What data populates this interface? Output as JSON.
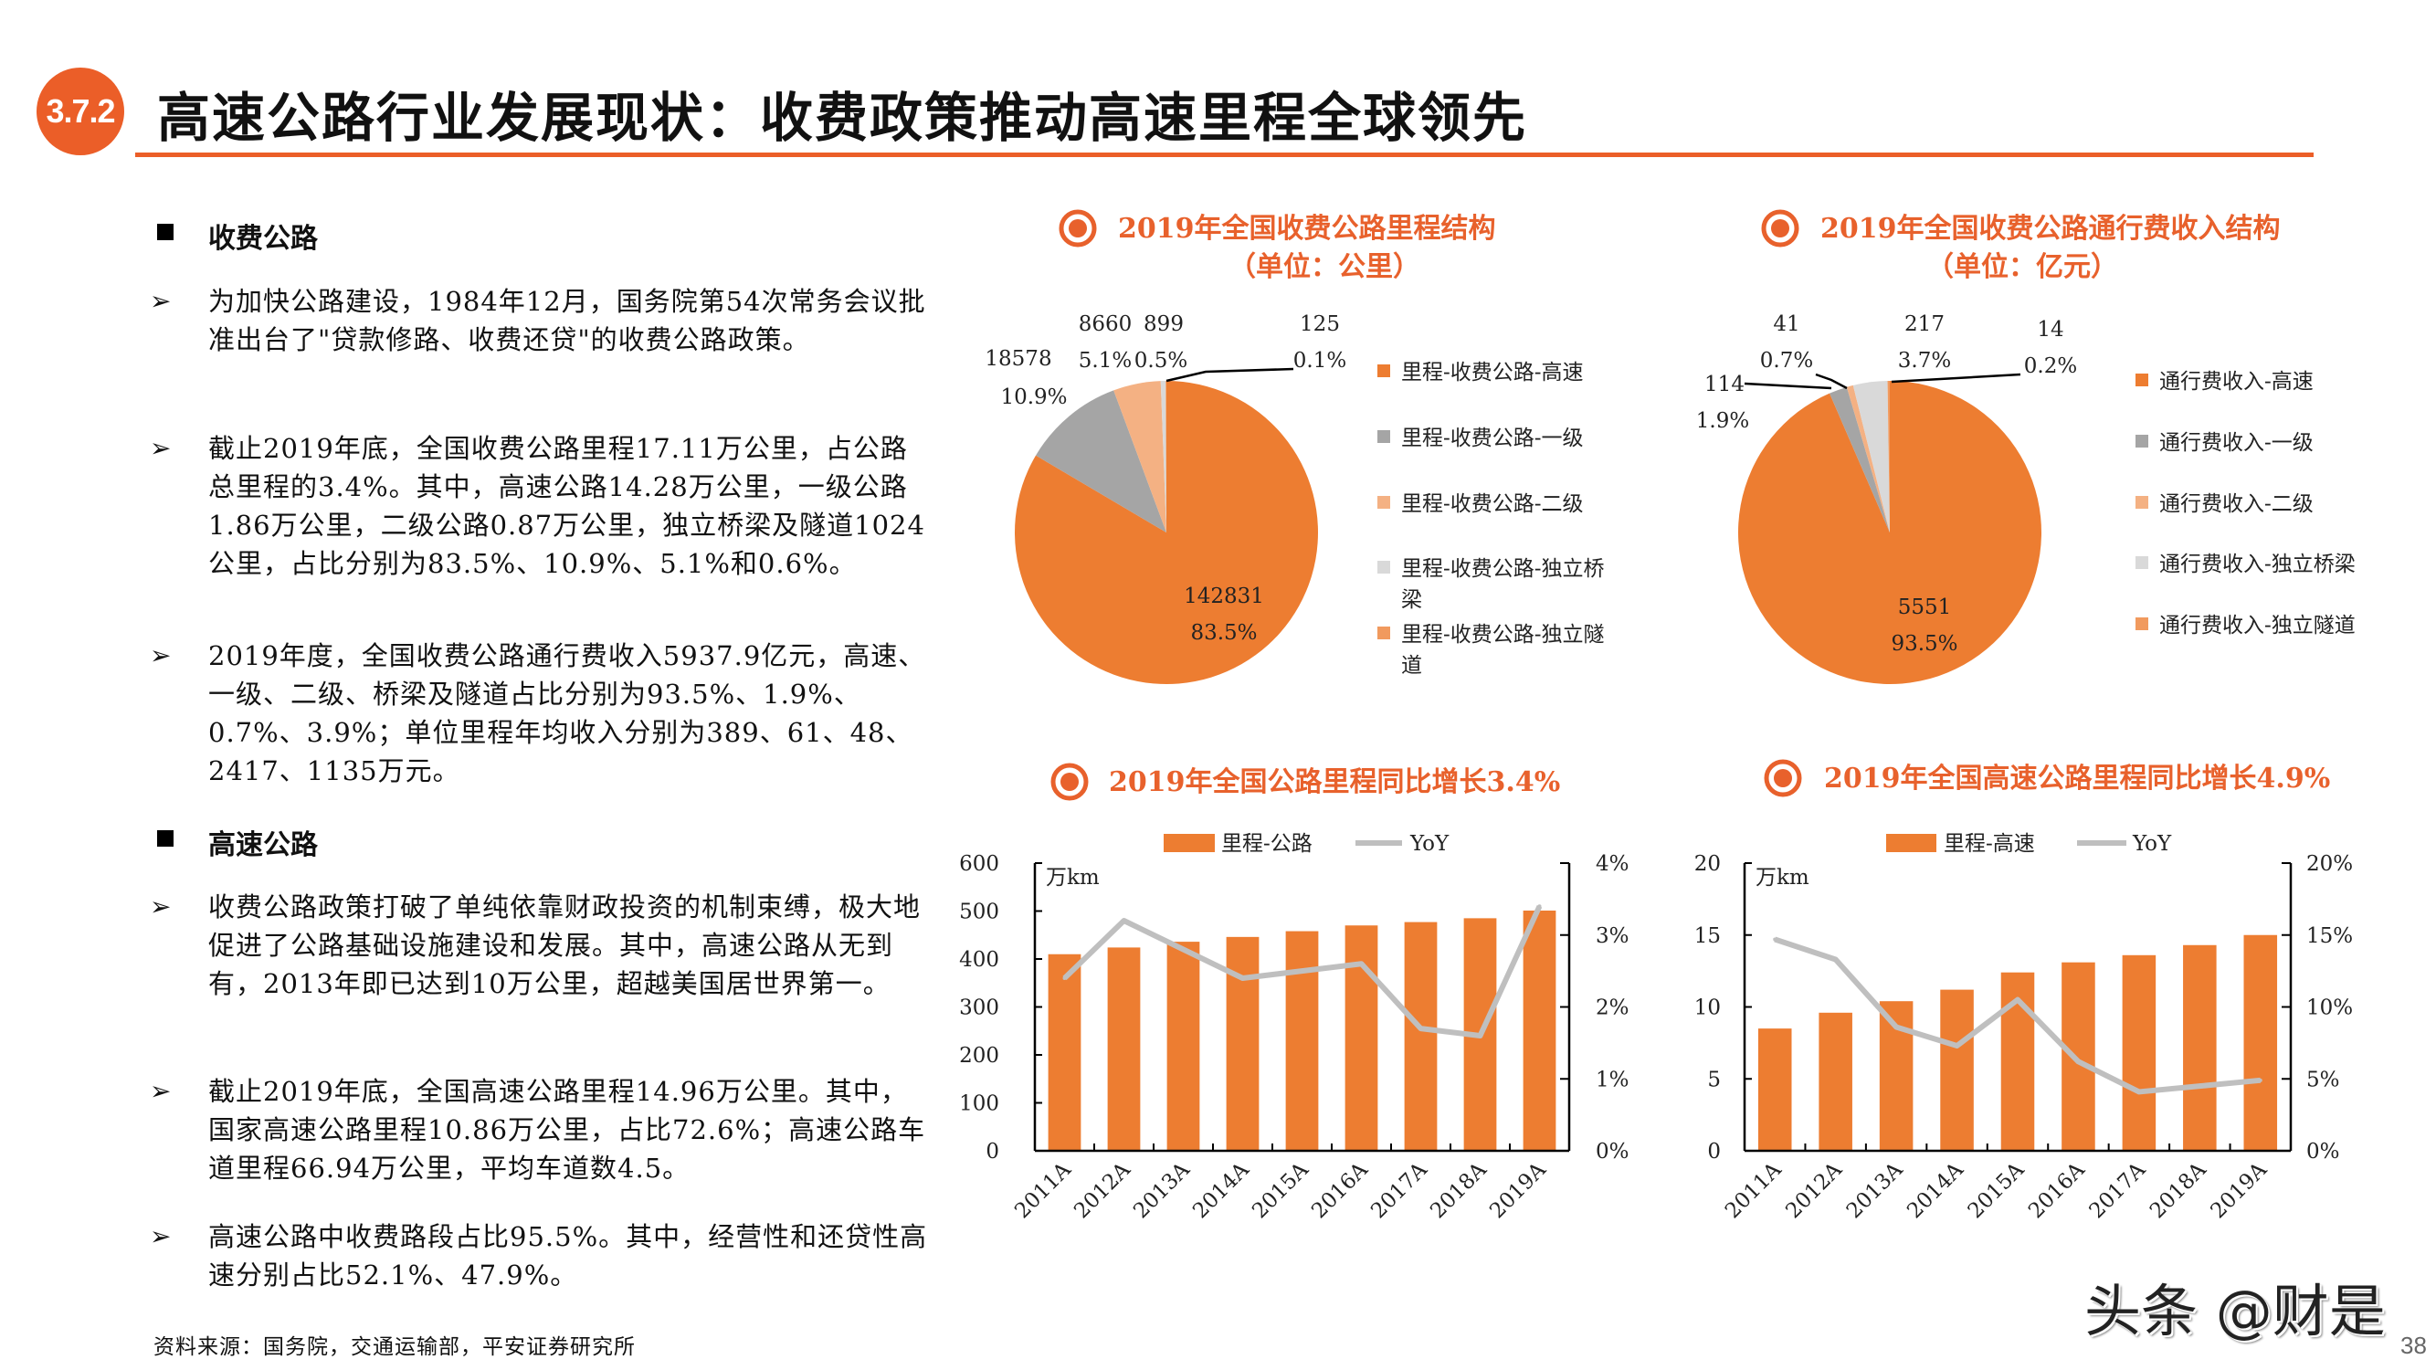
{
  "header": {
    "badge": "3.7.2",
    "title": "高速公路行业发展现状：收费政策推动高速里程全球领先"
  },
  "left": {
    "section1": "收费公路",
    "section2": "高速公路",
    "paragraphs1": [
      "为加快公路建设，1984年12月，国务院第54次常务会议批准出台了\"贷款修路、收费还贷\"的收费公路政策。",
      "截止2019年底，全国收费公路里程17.11万公里，占公路总里程的3.4%。其中，高速公路14.28万公里，一级公路1.86万公里，二级公路0.87万公里，独立桥梁及隧道1024公里，占比分别为83.5%、10.9%、5.1%和0.6%。",
      "2019年度，全国收费公路通行费收入5937.9亿元，高速、一级、二级、桥梁及隧道占比分别为93.5%、1.9%、0.7%、3.9%；单位里程年均收入分别为389、61、48、2417、1135万元。"
    ],
    "paragraphs2": [
      "收费公路政策打破了单纯依靠财政投资的机制束缚，极大地促进了公路基础设施建设和发展。其中，高速公路从无到有，2013年即已达到10万公里，超越美国居世界第一。",
      "截止2019年底，全国高速公路里程14.96万公里。其中，国家高速公路里程10.86万公里，占比72.6%；高速公路车道里程66.94万公里，平均车道数4.5。",
      "高速公路中收费路段占比95.5%。其中，经营性和还贷性高速分别占比52.1%、47.9%。"
    ],
    "bullet_glyph": "➢",
    "source": "资料来源：国务院，交通运输部，平安证券研究所"
  },
  "footer": {
    "watermark": "头条 @财是",
    "page": "38"
  },
  "colors": {
    "accent": "#EB5E28",
    "title": "#E8612C",
    "orange": "#ED7D31",
    "grey": "#A5A5A5",
    "light_orange": "#F4B183",
    "light_grey": "#D9D9D9",
    "tunnel": "#F19A5E",
    "line": "#BFBFBF"
  },
  "chart_data": [
    {
      "type": "pie",
      "title": "2019年全国收费公路里程结构",
      "subtitle": "（单位：公里）",
      "labels": [
        "里程-收费公路-高速",
        "里程-收费公路-一级",
        "里程-收费公路-二级",
        "里程-收费公路-独立桥梁",
        "里程-收费公路-独立隧道"
      ],
      "values": [
        142831,
        18578,
        8660,
        899,
        125
      ],
      "percent_labels": [
        "83.5%",
        "10.9%",
        "5.1%",
        "0.5%",
        "0.1%"
      ],
      "legend": "right"
    },
    {
      "type": "pie",
      "title": "2019年全国收费公路通行费收入结构",
      "subtitle": "（单位：亿元）",
      "labels": [
        "通行费收入-高速",
        "通行费收入-一级",
        "通行费收入-二级",
        "通行费收入-独立桥梁",
        "通行费收入-独立隧道"
      ],
      "values": [
        5551,
        114,
        41,
        217,
        14
      ],
      "percent_labels": [
        "93.5%",
        "1.9%",
        "0.7%",
        "3.7%",
        "0.2%"
      ],
      "legend": "right"
    },
    {
      "type": "bar",
      "title": "2019年全国公路里程同比增长3.4%",
      "unit": "万km",
      "categories": [
        "2011A",
        "2012A",
        "2013A",
        "2014A",
        "2015A",
        "2016A",
        "2017A",
        "2018A",
        "2019A"
      ],
      "series": [
        {
          "name": "里程-公路",
          "type": "bar",
          "axis": "left",
          "values": [
            410,
            424,
            436,
            446,
            458,
            470,
            477,
            485,
            501
          ]
        },
        {
          "name": "YoY",
          "type": "line",
          "axis": "right",
          "values": [
            2.4,
            3.2,
            2.8,
            2.4,
            2.5,
            2.6,
            1.7,
            1.6,
            3.4
          ]
        }
      ],
      "ylim": [
        0,
        600
      ],
      "yticks": [
        "0",
        "100",
        "200",
        "300",
        "400",
        "500",
        "600"
      ],
      "y2lim": [
        0,
        4
      ],
      "y2ticks": [
        "0%",
        "1%",
        "2%",
        "3%",
        "4%"
      ],
      "legend": "top"
    },
    {
      "type": "bar",
      "title": "2019年全国高速公路里程同比增长4.9%",
      "unit": "万km",
      "categories": [
        "2011A",
        "2012A",
        "2013A",
        "2014A",
        "2015A",
        "2016A",
        "2017A",
        "2018A",
        "2019A"
      ],
      "series": [
        {
          "name": "里程-高速",
          "type": "bar",
          "axis": "left",
          "values": [
            8.5,
            9.6,
            10.4,
            11.2,
            12.4,
            13.1,
            13.6,
            14.3,
            15.0
          ]
        },
        {
          "name": "YoY",
          "type": "line",
          "axis": "right",
          "values": [
            14.7,
            13.3,
            8.6,
            7.3,
            10.5,
            6.2,
            4.1,
            4.5,
            4.9
          ]
        }
      ],
      "ylim": [
        0,
        20
      ],
      "yticks": [
        "0",
        "5",
        "10",
        "15",
        "20"
      ],
      "y2lim": [
        0,
        20
      ],
      "y2ticks": [
        "0%",
        "5%",
        "10%",
        "15%",
        "20%"
      ],
      "legend": "top"
    }
  ]
}
